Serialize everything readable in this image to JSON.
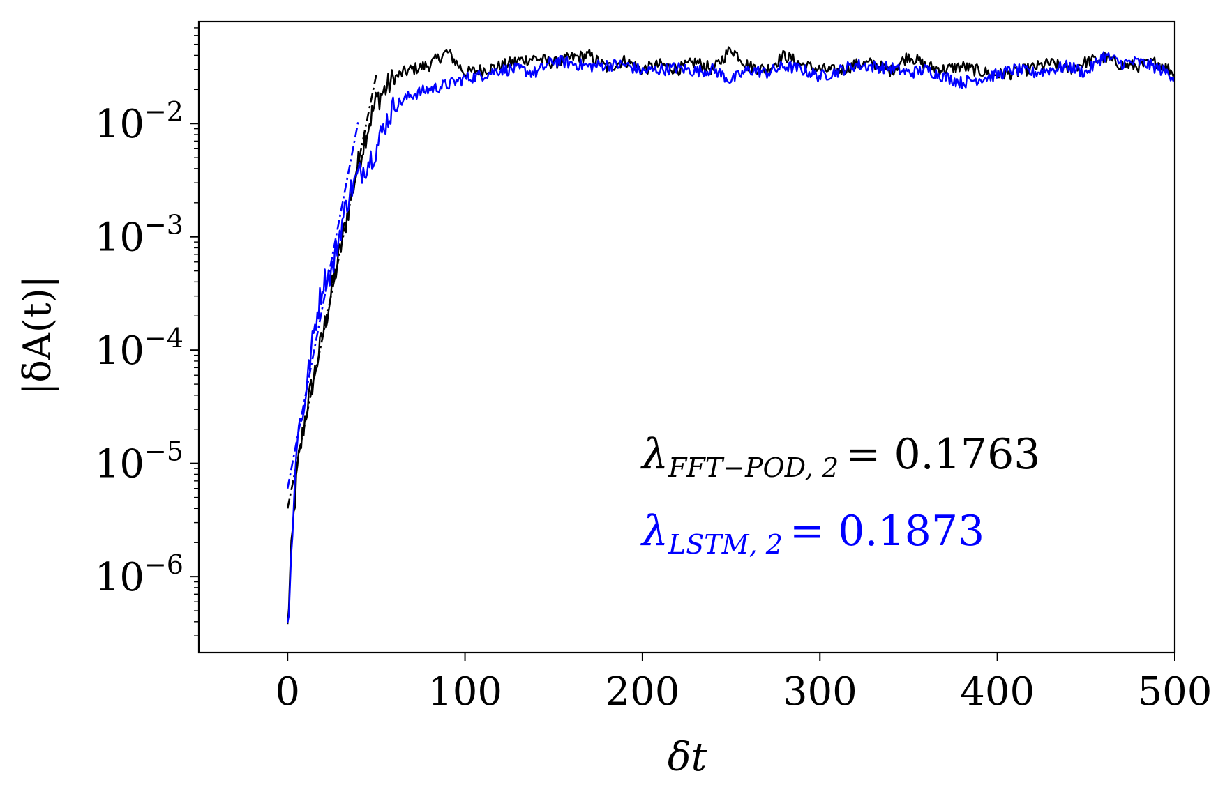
{
  "chart_data": {
    "type": "line",
    "xlabel": "δt",
    "ylabel": "|δA(t)|",
    "xlim": [
      -50,
      500
    ],
    "ylim_log10": [
      -6.67,
      -1.1
    ],
    "yscale": "log",
    "grid": false,
    "xticks": [
      0,
      100,
      200,
      300,
      400,
      500
    ],
    "yticks": [
      {
        "exp": -6,
        "label_base": "10",
        "label_exp": "−6"
      },
      {
        "exp": -5,
        "label_base": "10",
        "label_exp": "−5"
      },
      {
        "exp": -4,
        "label_base": "10",
        "label_exp": "−4"
      },
      {
        "exp": -3,
        "label_base": "10",
        "label_exp": "−3"
      },
      {
        "exp": -2,
        "label_base": "10",
        "label_exp": "−2"
      }
    ],
    "colors": {
      "fft_pod": "#000000",
      "lstm": "#0000ff"
    },
    "annotations": [
      {
        "symbol": "λ",
        "subscript": "FFT−POD, 2",
        "value": "= 0.1763",
        "color": "#000000"
      },
      {
        "symbol": "λ",
        "subscript": "LSTM, 2",
        "value": "= 0.1873",
        "color": "#0000ff"
      }
    ],
    "series": [
      {
        "key": "fft_pod",
        "color": "#000000",
        "growth_rate": 0.1763,
        "x": [
          0,
          2,
          4,
          6,
          8,
          10,
          15,
          20,
          25,
          30,
          35,
          40,
          45,
          50,
          55,
          60,
          65,
          70,
          80,
          90,
          100,
          110,
          120,
          130,
          140,
          150,
          160,
          170,
          180,
          190,
          200,
          210,
          220,
          230,
          240,
          250,
          260,
          270,
          280,
          290,
          300,
          310,
          320,
          330,
          340,
          350,
          360,
          370,
          380,
          390,
          400,
          410,
          420,
          430,
          440,
          450,
          460,
          470,
          480,
          490,
          500
        ],
        "y": [
          3.5e-07,
          1.5e-06,
          4.5e-06,
          1e-05,
          1.6e-05,
          2.6e-05,
          6e-05,
          0.00014,
          0.00034,
          0.0008,
          0.002,
          0.0045,
          0.009,
          0.016,
          0.02,
          0.025,
          0.028,
          0.03,
          0.033,
          0.043,
          0.028,
          0.03,
          0.032,
          0.036,
          0.038,
          0.034,
          0.038,
          0.04,
          0.031,
          0.036,
          0.03,
          0.033,
          0.03,
          0.035,
          0.03,
          0.046,
          0.032,
          0.03,
          0.04,
          0.033,
          0.03,
          0.029,
          0.033,
          0.034,
          0.029,
          0.04,
          0.032,
          0.03,
          0.032,
          0.029,
          0.027,
          0.028,
          0.031,
          0.034,
          0.03,
          0.035,
          0.038,
          0.033,
          0.032,
          0.035,
          0.028
        ]
      },
      {
        "key": "lstm",
        "color": "#0000ff",
        "growth_rate": 0.1873,
        "x": [
          0,
          2,
          4,
          6,
          8,
          10,
          15,
          20,
          25,
          30,
          35,
          40,
          45,
          50,
          55,
          60,
          65,
          70,
          80,
          90,
          100,
          110,
          120,
          130,
          140,
          150,
          160,
          170,
          180,
          190,
          200,
          210,
          220,
          230,
          240,
          250,
          260,
          270,
          280,
          290,
          300,
          310,
          320,
          330,
          340,
          350,
          360,
          370,
          380,
          390,
          400,
          410,
          420,
          430,
          440,
          450,
          460,
          470,
          480,
          490,
          500
        ],
        "y": [
          3.5e-07,
          1.5e-06,
          6e-06,
          2.5e-05,
          2.2e-05,
          4e-05,
          0.00015,
          0.0004,
          0.0005,
          0.0012,
          0.0025,
          0.0035,
          0.0045,
          0.006,
          0.01,
          0.014,
          0.016,
          0.018,
          0.02,
          0.022,
          0.025,
          0.027,
          0.03,
          0.03,
          0.028,
          0.036,
          0.034,
          0.032,
          0.033,
          0.033,
          0.029,
          0.03,
          0.031,
          0.029,
          0.03,
          0.024,
          0.03,
          0.028,
          0.032,
          0.03,
          0.026,
          0.029,
          0.033,
          0.032,
          0.031,
          0.028,
          0.03,
          0.026,
          0.023,
          0.025,
          0.027,
          0.03,
          0.028,
          0.03,
          0.032,
          0.028,
          0.04,
          0.034,
          0.035,
          0.031,
          0.026
        ]
      }
    ]
  }
}
